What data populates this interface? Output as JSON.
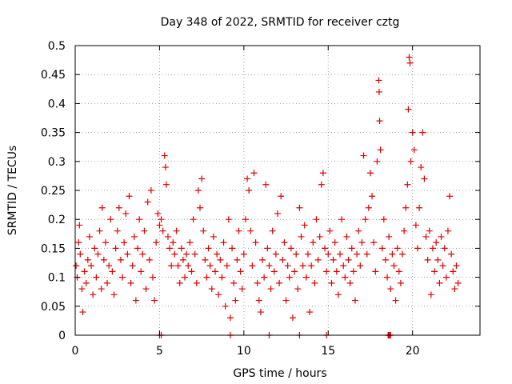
{
  "chart_data": {
    "type": "scatter",
    "title": "Day 348 of 2022, SRMTID for receiver cztg",
    "xlabel": "GPS time / hours",
    "ylabel": "SRMTID / TECUs",
    "xlim": [
      0,
      24
    ],
    "ylim": [
      0,
      0.5
    ],
    "x_ticks": [
      0,
      5,
      10,
      15,
      20
    ],
    "x_tick_labels": [
      "0",
      "5",
      "10",
      "15",
      "20"
    ],
    "y_ticks": [
      0,
      0.05,
      0.1,
      0.15,
      0.2,
      0.25,
      0.3,
      0.35,
      0.4,
      0.45,
      0.5
    ],
    "y_tick_labels": [
      "0",
      "0.05",
      "0.1",
      "0.15",
      "0.2",
      "0.25",
      "0.3",
      "0.35",
      "0.4",
      "0.45",
      "0.5"
    ],
    "grid": true,
    "marker": "+",
    "color": "#e00000",
    "series": [
      {
        "name": "SRMTID",
        "points": [
          [
            0.05,
            0.12
          ],
          [
            0.12,
            0.1
          ],
          [
            0.2,
            0.16
          ],
          [
            0.25,
            0.19
          ],
          [
            0.3,
            0.14
          ],
          [
            0.4,
            0.08
          ],
          [
            0.45,
            0.04
          ],
          [
            0.55,
            0.11
          ],
          [
            0.65,
            0.09
          ],
          [
            0.75,
            0.13
          ],
          [
            0.85,
            0.17
          ],
          [
            0.95,
            0.12
          ],
          [
            1.05,
            0.07
          ],
          [
            1.15,
            0.15
          ],
          [
            1.25,
            0.1
          ],
          [
            1.35,
            0.14
          ],
          [
            1.45,
            0.18
          ],
          [
            1.55,
            0.08
          ],
          [
            1.6,
            0.22
          ],
          [
            1.7,
            0.13
          ],
          [
            1.8,
            0.16
          ],
          [
            1.9,
            0.09
          ],
          [
            2.0,
            0.12
          ],
          [
            2.1,
            0.2
          ],
          [
            2.2,
            0.11
          ],
          [
            2.3,
            0.07
          ],
          [
            2.4,
            0.15
          ],
          [
            2.5,
            0.18
          ],
          [
            2.6,
            0.22
          ],
          [
            2.7,
            0.13
          ],
          [
            2.8,
            0.1
          ],
          [
            2.9,
            0.16
          ],
          [
            3.0,
            0.21
          ],
          [
            3.1,
            0.14
          ],
          [
            3.2,
            0.24
          ],
          [
            3.3,
            0.09
          ],
          [
            3.4,
            0.12
          ],
          [
            3.5,
            0.17
          ],
          [
            3.6,
            0.06
          ],
          [
            3.7,
            0.15
          ],
          [
            3.8,
            0.2
          ],
          [
            3.9,
            0.11
          ],
          [
            4.0,
            0.14
          ],
          [
            4.1,
            0.18
          ],
          [
            4.2,
            0.08
          ],
          [
            4.3,
            0.23
          ],
          [
            4.4,
            0.13
          ],
          [
            4.5,
            0.25
          ],
          [
            4.6,
            0.1
          ],
          [
            4.7,
            0.06
          ],
          [
            4.8,
            0.16
          ],
          [
            4.9,
            0.21
          ],
          [
            5.0,
            0.19
          ],
          [
            5.1,
            0.2
          ],
          [
            5.2,
            0.18
          ],
          [
            5.3,
            0.31
          ],
          [
            5.35,
            0.29
          ],
          [
            5.4,
            0.26
          ],
          [
            5.5,
            0.17
          ],
          [
            5.6,
            0.15
          ],
          [
            5.7,
            0.12
          ],
          [
            5.8,
            0.16
          ],
          [
            5.9,
            0.14
          ],
          [
            6.0,
            0.18
          ],
          [
            6.1,
            0.12
          ],
          [
            6.2,
            0.09
          ],
          [
            6.3,
            0.15
          ],
          [
            6.4,
            0.13
          ],
          [
            6.5,
            0.1
          ],
          [
            6.6,
            0.14
          ],
          [
            6.7,
            0.12
          ],
          [
            6.8,
            0.16
          ],
          [
            6.9,
            0.11
          ],
          [
            7.0,
            0.2
          ],
          [
            7.1,
            0.14
          ],
          [
            7.2,
            0.09
          ],
          [
            7.3,
            0.25
          ],
          [
            7.4,
            0.22
          ],
          [
            7.5,
            0.27
          ],
          [
            7.6,
            0.18
          ],
          [
            7.7,
            0.13
          ],
          [
            7.8,
            0.1
          ],
          [
            7.9,
            0.15
          ],
          [
            8.0,
            0.12
          ],
          [
            8.1,
            0.08
          ],
          [
            8.2,
            0.17
          ],
          [
            8.3,
            0.11
          ],
          [
            8.4,
            0.14
          ],
          [
            8.5,
            0.07
          ],
          [
            8.6,
            0.13
          ],
          [
            8.7,
            0.1
          ],
          [
            8.8,
            0.16
          ],
          [
            8.9,
            0.05
          ],
          [
            9.0,
            0.12
          ],
          [
            9.1,
            0.2
          ],
          [
            9.2,
            0.03
          ],
          [
            9.3,
            0.15
          ],
          [
            9.4,
            0.09
          ],
          [
            9.5,
            0.06
          ],
          [
            9.6,
            0.13
          ],
          [
            9.7,
            0.18
          ],
          [
            9.8,
            0.11
          ],
          [
            9.9,
            0.08
          ],
          [
            10.0,
            0.14
          ],
          [
            10.1,
            0.2
          ],
          [
            10.2,
            0.27
          ],
          [
            10.3,
            0.25
          ],
          [
            10.4,
            0.18
          ],
          [
            10.5,
            0.12
          ],
          [
            10.6,
            0.28
          ],
          [
            10.7,
            0.16
          ],
          [
            10.8,
            0.09
          ],
          [
            10.9,
            0.06
          ],
          [
            11.0,
            0.04
          ],
          [
            11.1,
            0.13
          ],
          [
            11.2,
            0.1
          ],
          [
            11.3,
            0.26
          ],
          [
            11.4,
            0.15
          ],
          [
            11.5,
            0.12
          ],
          [
            11.6,
            0.08
          ],
          [
            11.7,
            0.18
          ],
          [
            11.8,
            0.11
          ],
          [
            11.9,
            0.14
          ],
          [
            12.0,
            0.21
          ],
          [
            12.1,
            0.09
          ],
          [
            12.2,
            0.24
          ],
          [
            12.3,
            0.13
          ],
          [
            12.4,
            0.16
          ],
          [
            12.5,
            0.06
          ],
          [
            12.6,
            0.12
          ],
          [
            12.7,
            0.1
          ],
          [
            12.8,
            0.15
          ],
          [
            12.9,
            0.03
          ],
          [
            13.0,
            0.11
          ],
          [
            13.1,
            0.14
          ],
          [
            13.2,
            0.08
          ],
          [
            13.3,
            0.22
          ],
          [
            13.4,
            0.17
          ],
          [
            13.5,
            0.12
          ],
          [
            13.6,
            0.19
          ],
          [
            13.7,
            0.1
          ],
          [
            13.8,
            0.14
          ],
          [
            13.9,
            0.04
          ],
          [
            14.0,
            0.12
          ],
          [
            14.1,
            0.16
          ],
          [
            14.2,
            0.09
          ],
          [
            14.3,
            0.2
          ],
          [
            14.4,
            0.13
          ],
          [
            14.5,
            0.17
          ],
          [
            14.6,
            0.26
          ],
          [
            14.7,
            0.28
          ],
          [
            14.8,
            0.15
          ],
          [
            14.9,
            0.11
          ],
          [
            15.0,
            0.14
          ],
          [
            15.1,
            0.18
          ],
          [
            15.2,
            0.09
          ],
          [
            15.3,
            0.13
          ],
          [
            15.4,
            0.16
          ],
          [
            15.5,
            0.11
          ],
          [
            15.6,
            0.07
          ],
          [
            15.7,
            0.14
          ],
          [
            15.8,
            0.2
          ],
          [
            15.9,
            0.12
          ],
          [
            16.0,
            0.1
          ],
          [
            16.1,
            0.17
          ],
          [
            16.2,
            0.13
          ],
          [
            16.3,
            0.09
          ],
          [
            16.4,
            0.15
          ],
          [
            16.5,
            0.11
          ],
          [
            16.6,
            0.06
          ],
          [
            16.7,
            0.14
          ],
          [
            16.8,
            0.18
          ],
          [
            16.9,
            0.12
          ],
          [
            17.0,
            0.16
          ],
          [
            17.1,
            0.31
          ],
          [
            17.2,
            0.2
          ],
          [
            17.3,
            0.14
          ],
          [
            17.4,
            0.22
          ],
          [
            17.5,
            0.28
          ],
          [
            17.6,
            0.24
          ],
          [
            17.7,
            0.16
          ],
          [
            17.8,
            0.11
          ],
          [
            17.9,
            0.3
          ],
          [
            18.0,
            0.44
          ],
          [
            18.02,
            0.42
          ],
          [
            18.05,
            0.37
          ],
          [
            18.1,
            0.32
          ],
          [
            18.2,
            0.15
          ],
          [
            18.3,
            0.2
          ],
          [
            18.4,
            0.13
          ],
          [
            18.5,
            0.1
          ],
          [
            18.6,
            0.17
          ],
          [
            18.7,
            0.08
          ],
          [
            18.8,
            0.14
          ],
          [
            18.9,
            0.12
          ],
          [
            19.0,
            0.06
          ],
          [
            19.1,
            0.15
          ],
          [
            19.2,
            0.11
          ],
          [
            19.3,
            0.09
          ],
          [
            19.4,
            0.14
          ],
          [
            19.5,
            0.18
          ],
          [
            19.6,
            0.22
          ],
          [
            19.7,
            0.26
          ],
          [
            19.75,
            0.39
          ],
          [
            19.8,
            0.48
          ],
          [
            19.85,
            0.47
          ],
          [
            19.9,
            0.3
          ],
          [
            20.0,
            0.35
          ],
          [
            20.1,
            0.32
          ],
          [
            20.2,
            0.19
          ],
          [
            20.3,
            0.15
          ],
          [
            20.4,
            0.22
          ],
          [
            20.5,
            0.29
          ],
          [
            20.6,
            0.35
          ],
          [
            20.7,
            0.27
          ],
          [
            20.8,
            0.17
          ],
          [
            20.9,
            0.13
          ],
          [
            21.0,
            0.18
          ],
          [
            21.1,
            0.07
          ],
          [
            21.2,
            0.15
          ],
          [
            21.3,
            0.11
          ],
          [
            21.4,
            0.16
          ],
          [
            21.5,
            0.13
          ],
          [
            21.6,
            0.09
          ],
          [
            21.7,
            0.17
          ],
          [
            21.8,
            0.12
          ],
          [
            21.9,
            0.15
          ],
          [
            22.0,
            0.1
          ],
          [
            22.1,
            0.18
          ],
          [
            22.2,
            0.24
          ],
          [
            22.3,
            0.14
          ],
          [
            22.4,
            0.11
          ],
          [
            22.5,
            0.08
          ],
          [
            22.6,
            0.12
          ],
          [
            22.7,
            0.09
          ]
        ],
        "zero_points_x": [
          5.0,
          5.1,
          9.2,
          11.5,
          13.3,
          14.9,
          18.55,
          18.6,
          18.65,
          18.7
        ]
      }
    ]
  }
}
